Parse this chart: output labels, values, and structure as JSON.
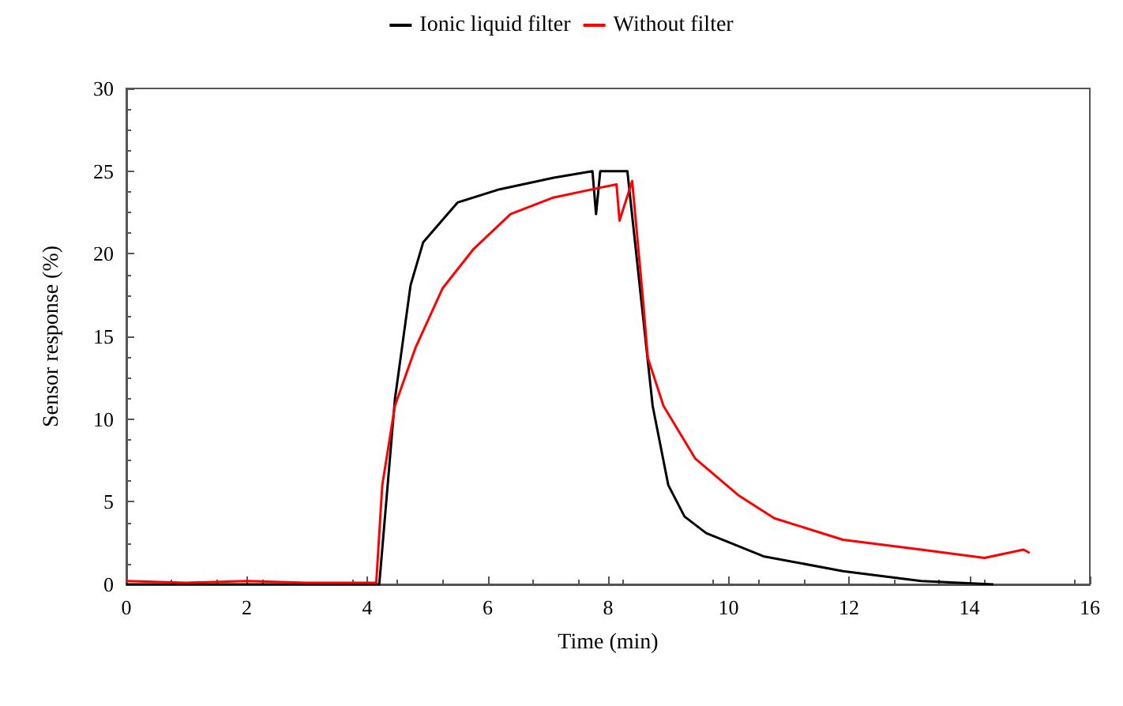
{
  "chart_data": {
    "type": "line",
    "xlabel": "Time (min)",
    "ylabel": "Sensor response (%)",
    "xlim": [
      0,
      16
    ],
    "xticks": [
      0,
      2,
      4,
      6,
      8,
      10,
      12,
      14,
      16
    ],
    "ylim": [
      0,
      30
    ],
    "yticks": [
      0,
      5,
      10,
      15,
      20,
      25,
      30
    ],
    "grid": false,
    "legend": "top",
    "marker": "none",
    "line_style": "solid",
    "series": [
      {
        "name": "Ionic liquid filter",
        "color": "#000000",
        "x": [
          0,
          4.2,
          4.46,
          4.72,
          4.93,
          5.5,
          6.2,
          7.1,
          7.74,
          7.8,
          7.87,
          8.32,
          8.74,
          9.0,
          9.27,
          9.63,
          10.58,
          11.9,
          13.2,
          14.4
        ],
        "values": [
          0,
          0,
          11.2,
          18.1,
          20.7,
          23.1,
          23.9,
          24.6,
          25.0,
          22.4,
          25.0,
          25.0,
          10.8,
          6.0,
          4.1,
          3.1,
          1.7,
          0.8,
          0.2,
          0
        ]
      },
      {
        "name": "Without filter",
        "color": "#ff0000",
        "x": [
          0,
          1.0,
          2.0,
          3.0,
          4.15,
          4.25,
          4.46,
          4.8,
          5.25,
          5.77,
          6.38,
          7.09,
          7.87,
          8.14,
          8.19,
          8.4,
          8.58,
          8.66,
          8.92,
          9.45,
          10.16,
          10.76,
          11.9,
          13.2,
          14.25,
          14.9,
          15.0
        ],
        "values": [
          0.2,
          0.1,
          0.2,
          0.1,
          0.1,
          6.0,
          10.8,
          14.3,
          17.9,
          20.3,
          22.4,
          23.4,
          24.0,
          24.2,
          22.0,
          24.4,
          17.2,
          13.7,
          10.8,
          7.6,
          5.4,
          4.0,
          2.7,
          2.1,
          1.6,
          2.1,
          1.9
        ]
      }
    ]
  }
}
